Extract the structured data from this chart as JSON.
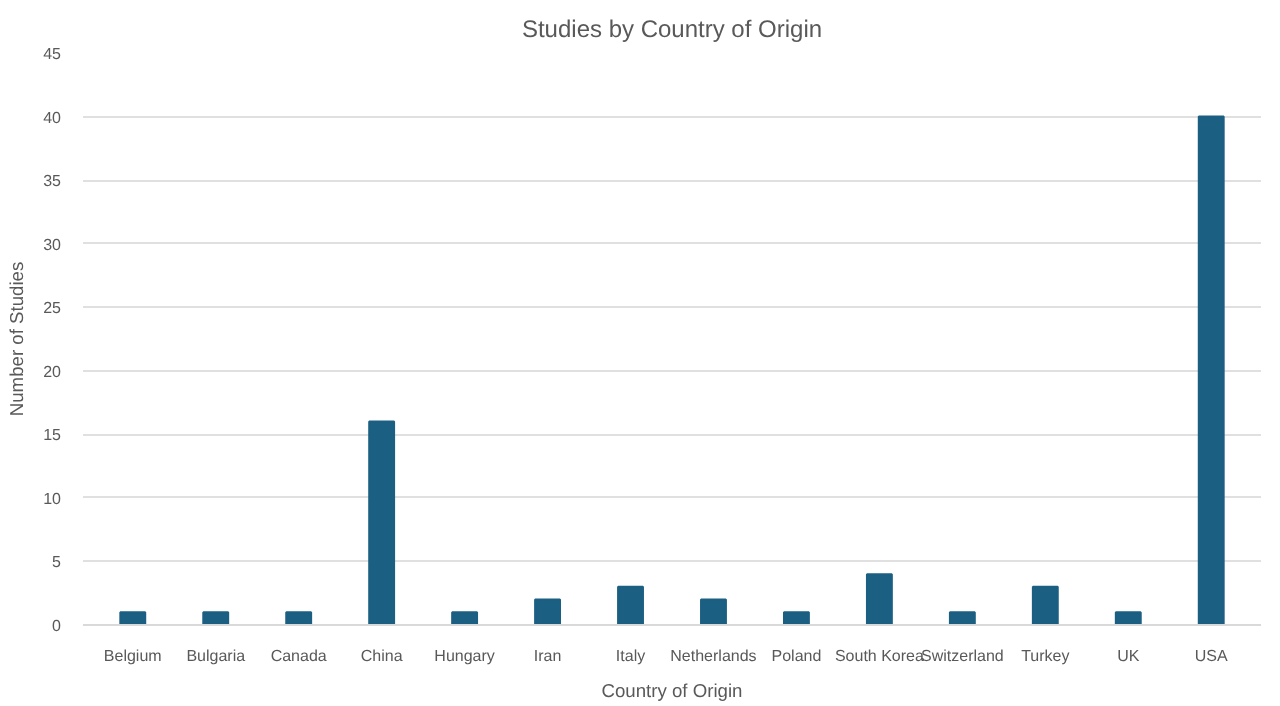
{
  "chart_data": {
    "type": "bar",
    "title": "Studies by Country of Origin",
    "xlabel": "Country of Origin",
    "ylabel": "Number of Studies",
    "categories": [
      "Belgium",
      "Bulgaria",
      "Canada",
      "China",
      "Hungary",
      "Iran",
      "Italy",
      "Netherlands",
      "Poland",
      "South Korea",
      "Switzerland",
      "Turkey",
      "UK",
      "USA"
    ],
    "values": [
      1,
      1,
      1,
      16,
      1,
      2,
      3,
      2,
      1,
      4,
      1,
      3,
      1,
      40
    ],
    "color": "#1b5f82",
    "ylim": [
      0,
      45
    ],
    "yticks": [
      0,
      5,
      10,
      15,
      20,
      25,
      30,
      35,
      40,
      45
    ],
    "grid": "y"
  }
}
